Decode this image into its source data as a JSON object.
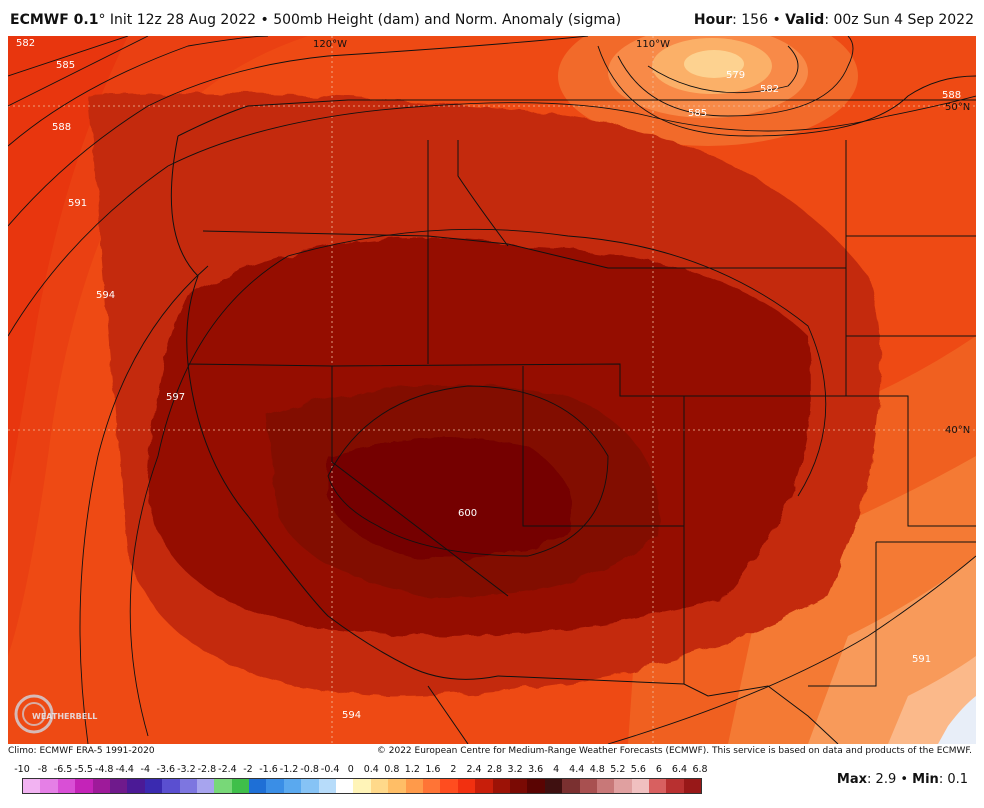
{
  "header": {
    "model": "ECMWF 0.1",
    "degree": "°",
    "init": " Init 12z 28 Aug 2022",
    "sep1": " • ",
    "product": "500mb Height (dam) and Norm. Anomaly (sigma)",
    "hour_label": "Hour",
    "hour_value": ": 156",
    "sep2": " • ",
    "valid_label": "Valid",
    "valid_value": ": 00z Sun 4 Sep 2022"
  },
  "map": {
    "lon_labels": [
      "120°W",
      "110°W"
    ],
    "lat_labels": [
      "50°N",
      "40°N"
    ],
    "contour_labels": [
      "582",
      "585",
      "588",
      "591",
      "594",
      "597",
      "600",
      "594",
      "591",
      "579",
      "582",
      "585",
      "588"
    ]
  },
  "footer": {
    "climo": "Climo: ECMWF ERA-5 1991-2020",
    "copyright": "© 2022 European Centre for Medium-Range Weather Forecasts (ECMWF). This service is based on data and products of the ECMWF.",
    "max_label": "Max",
    "max_value": ": 2.9",
    "sep": " • ",
    "min_label": "Min",
    "min_value": ": 0.1",
    "logo_text": "WEATHERBELL"
  },
  "colorbar": {
    "labels": [
      "-10",
      "-8",
      "-6.5",
      "-5.5",
      "-4.8",
      "-4.4",
      "-4",
      "-3.6",
      "-3.2",
      "-2.8",
      "-2.4",
      "-2",
      "-1.6",
      "-1.2",
      "-0.8",
      "-0.4",
      "0",
      "0.4",
      "0.8",
      "1.2",
      "1.6",
      "2",
      "2.4",
      "2.8",
      "3.2",
      "3.6",
      "4",
      "4.4",
      "4.8",
      "5.2",
      "5.6",
      "6",
      "6.4",
      "6.8"
    ],
    "colors": [
      "#f2b3f2",
      "#e57fe6",
      "#d94fd6",
      "#c423b8",
      "#9e1a9a",
      "#6f1a8c",
      "#4b1a96",
      "#3a2ab0",
      "#5a4fd0",
      "#7d76e0",
      "#a7a4ee",
      "#78d878",
      "#3fbf4a",
      "#1e6fd6",
      "#3a8ee6",
      "#5aa9ef",
      "#86c3f5",
      "#b7dcfa",
      "#ffffff",
      "#fff4b8",
      "#ffd98a",
      "#ffbe66",
      "#ff9a4a",
      "#ff7436",
      "#ff4d1f",
      "#f23010",
      "#c81e0a",
      "#9c1206",
      "#7a0a04",
      "#5a0402",
      "#3f1010",
      "#7a3030",
      "#a85050",
      "#c87878",
      "#e0a0a0",
      "#f0c0c0",
      "#d86060",
      "#b83030",
      "#981818"
    ],
    "colors_note": ""
  }
}
